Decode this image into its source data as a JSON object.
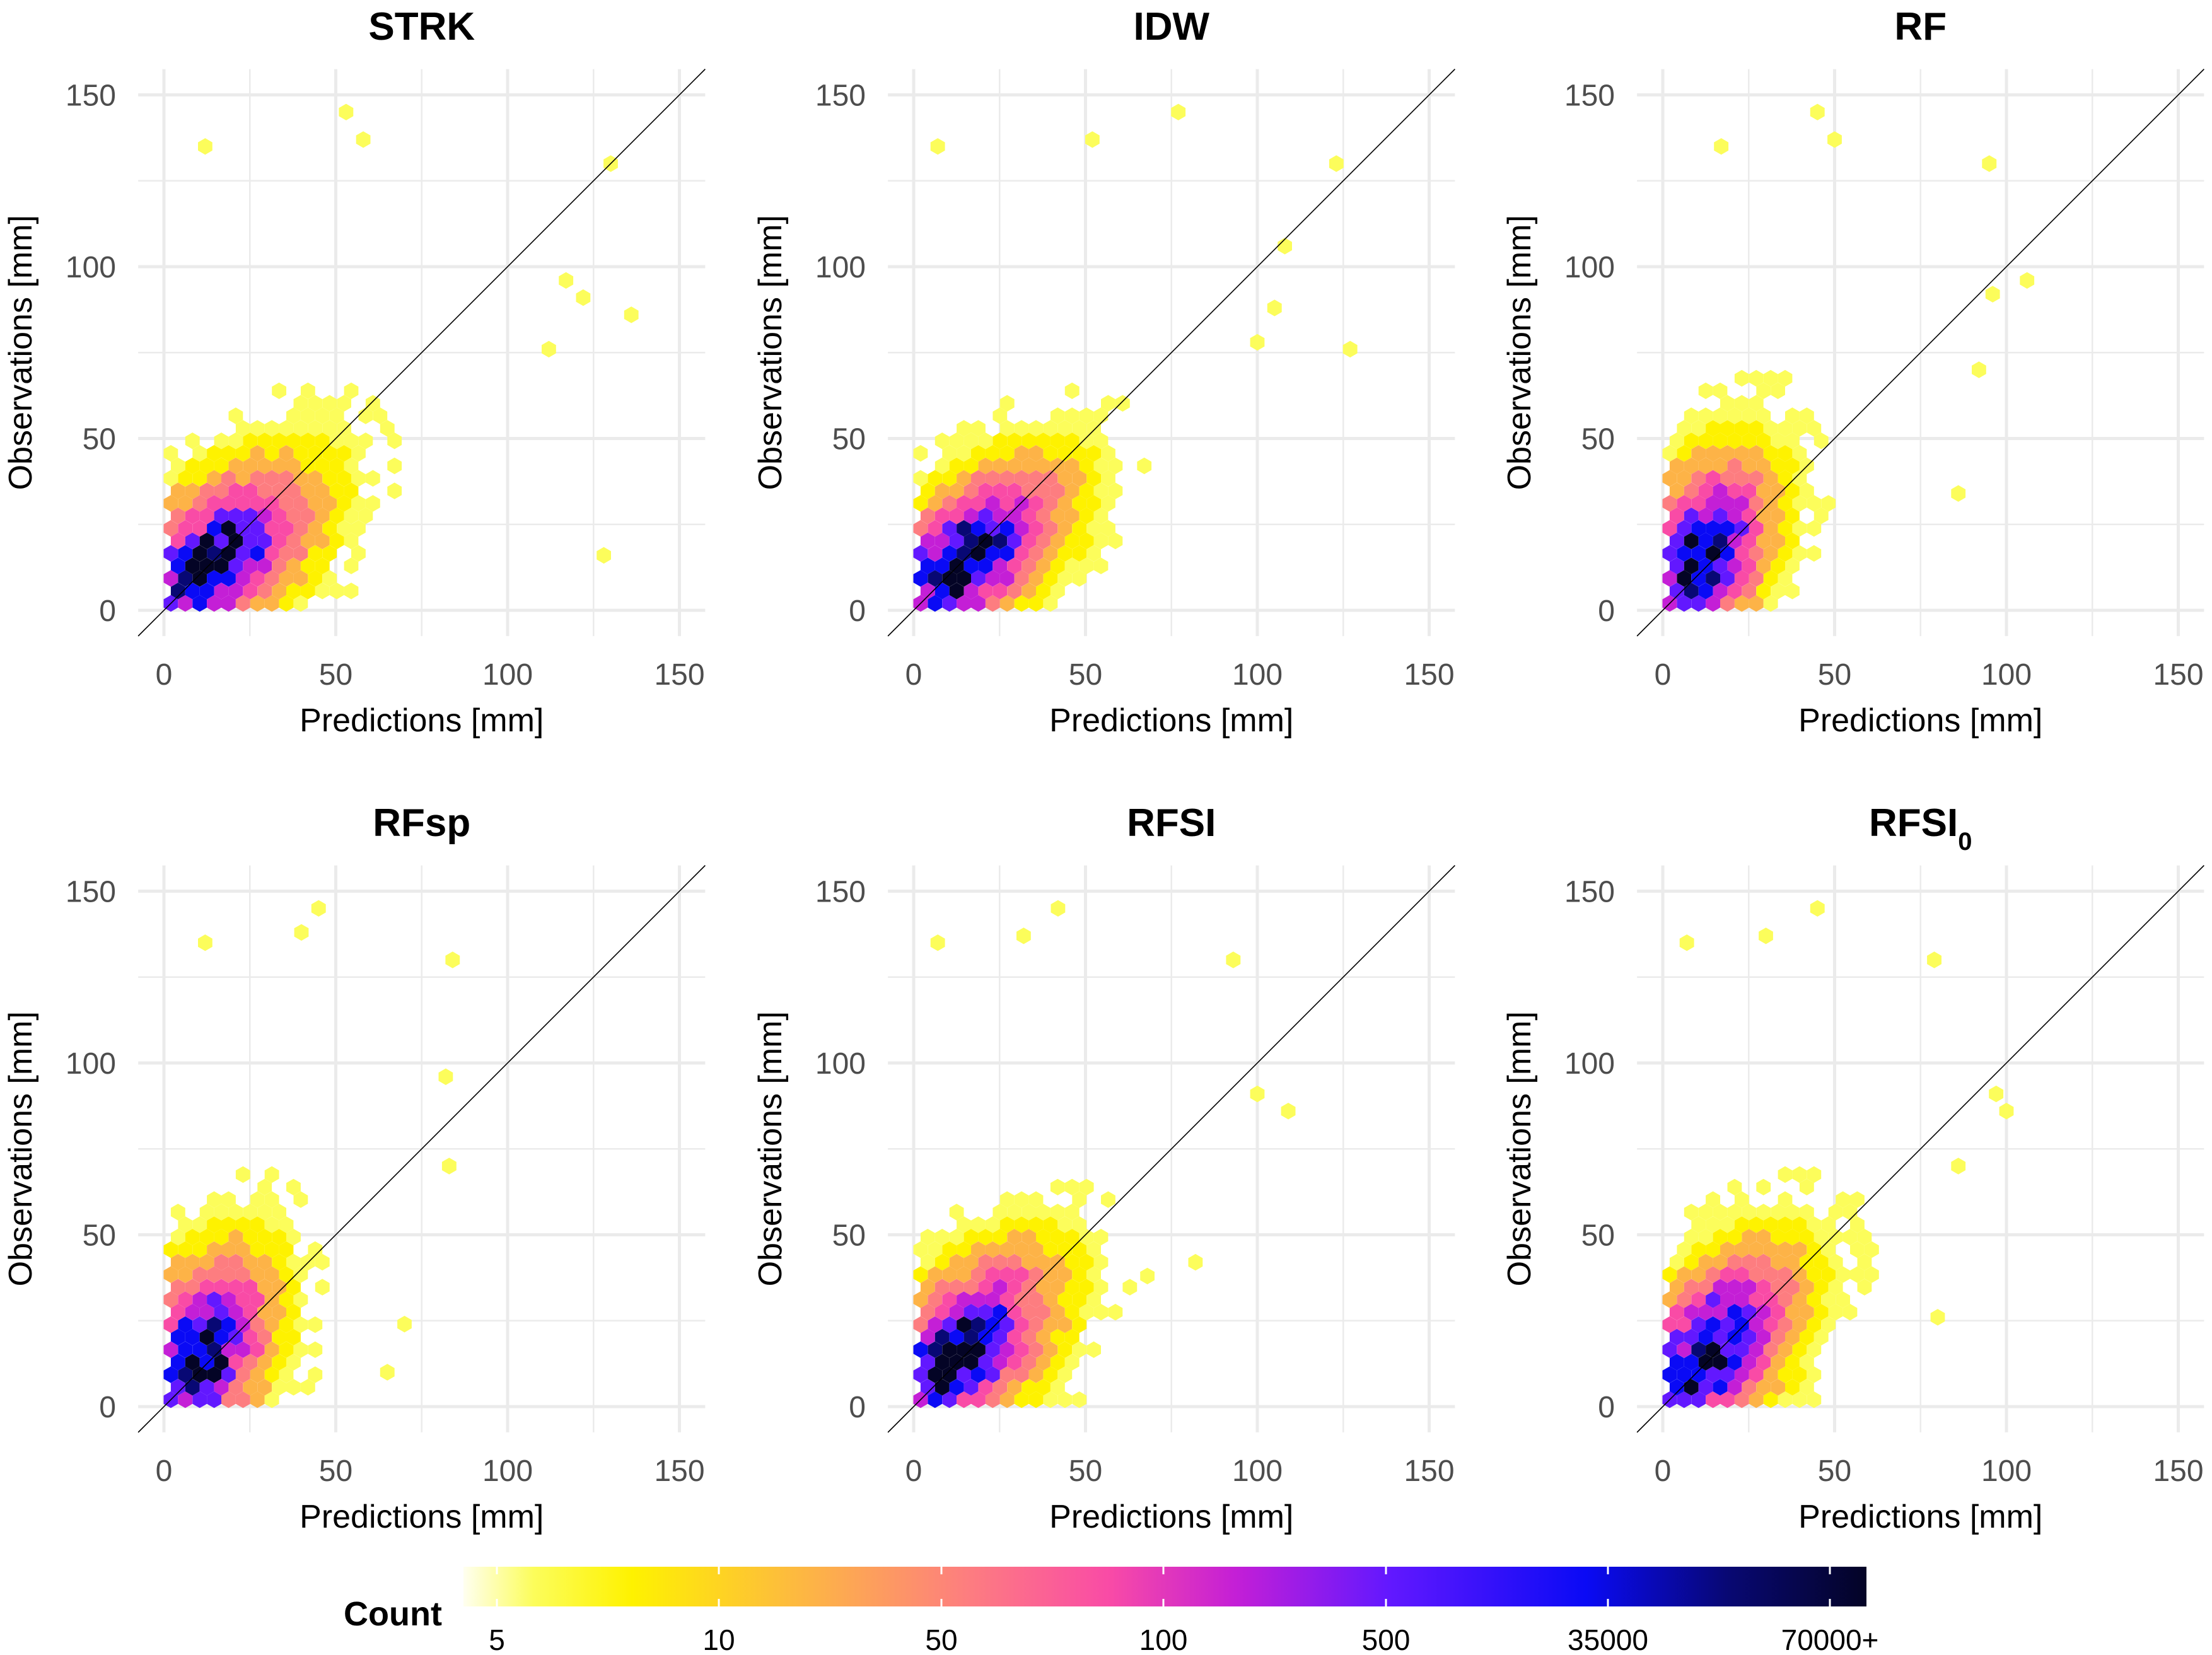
{
  "figure": {
    "colors": {
      "grid": "#ebebeb",
      "background": "#ffffff",
      "line": "#000000"
    }
  },
  "chart_data": [
    {
      "type": "hexbin",
      "title": "STRK",
      "xlabel": "Predictions [mm]",
      "ylabel": "Observations [mm]",
      "xlim": [
        0,
        150
      ],
      "ylim": [
        0,
        150
      ],
      "xticks": [
        "0",
        "50",
        "100",
        "150"
      ],
      "yticks": [
        "0",
        "50",
        "100",
        "150"
      ],
      "reference_line": "y = x",
      "extremes": [
        [
          12,
          135
        ],
        [
          53,
          145
        ],
        [
          58,
          137
        ],
        [
          130,
          130
        ],
        [
          128,
          16
        ],
        [
          136,
          86
        ],
        [
          112,
          76
        ],
        [
          117,
          96
        ],
        [
          122,
          91
        ]
      ],
      "density_profile": {
        "core": [
          14,
          14
        ],
        "spread_x": 16,
        "spread_y": 15,
        "corr": 0.55
      }
    },
    {
      "type": "hexbin",
      "title": "IDW",
      "xlabel": "Predictions [mm]",
      "ylabel": "Observations [mm]",
      "xlim": [
        0,
        150
      ],
      "ylim": [
        0,
        150
      ],
      "xticks": [
        "0",
        "50",
        "100",
        "150"
      ],
      "yticks": [
        "0",
        "50",
        "100",
        "150"
      ],
      "reference_line": "y = x",
      "extremes": [
        [
          7,
          135
        ],
        [
          77,
          145
        ],
        [
          52,
          137
        ],
        [
          123,
          130
        ],
        [
          127,
          76
        ],
        [
          108,
          106
        ],
        [
          100,
          78
        ],
        [
          105,
          88
        ]
      ],
      "density_profile": {
        "core": [
          14,
          14
        ],
        "spread_x": 16,
        "spread_y": 15,
        "corr": 0.6
      }
    },
    {
      "type": "hexbin",
      "title": "RF",
      "xlabel": "Predictions [mm]",
      "ylabel": "Observations [mm]",
      "xlim": [
        0,
        150
      ],
      "ylim": [
        0,
        150
      ],
      "xticks": [
        "0",
        "50",
        "100",
        "150"
      ],
      "yticks": [
        "0",
        "50",
        "100",
        "150"
      ],
      "reference_line": "y = x",
      "extremes": [
        [
          17,
          135
        ],
        [
          45,
          145
        ],
        [
          50,
          137
        ],
        [
          95,
          130
        ],
        [
          106,
          96
        ],
        [
          92,
          70
        ],
        [
          86,
          34
        ],
        [
          96,
          92
        ]
      ],
      "density_profile": {
        "core": [
          11,
          15
        ],
        "spread_x": 11,
        "spread_y": 16,
        "corr": 0.4
      }
    },
    {
      "type": "hexbin",
      "title": "RFsp",
      "xlabel": "Predictions [mm]",
      "ylabel": "Observations [mm]",
      "xlim": [
        0,
        150
      ],
      "ylim": [
        0,
        150
      ],
      "xticks": [
        "0",
        "50",
        "100",
        "150"
      ],
      "yticks": [
        "0",
        "50",
        "100",
        "150"
      ],
      "reference_line": "y = x",
      "extremes": [
        [
          12,
          135
        ],
        [
          45,
          145
        ],
        [
          40,
          138
        ],
        [
          84,
          130
        ],
        [
          83,
          70
        ],
        [
          82,
          96
        ],
        [
          70,
          24
        ],
        [
          65,
          10
        ]
      ],
      "density_profile": {
        "core": [
          11,
          15
        ],
        "spread_x": 11,
        "spread_y": 16,
        "corr": 0.4
      }
    },
    {
      "type": "hexbin",
      "title": "RFSI",
      "xlabel": "Predictions [mm]",
      "ylabel": "Observations [mm]",
      "xlim": [
        0,
        150
      ],
      "ylim": [
        0,
        150
      ],
      "xticks": [
        "0",
        "50",
        "100",
        "150"
      ],
      "yticks": [
        "0",
        "50",
        "100",
        "150"
      ],
      "reference_line": "y = x",
      "extremes": [
        [
          7,
          135
        ],
        [
          42,
          145
        ],
        [
          32,
          137
        ],
        [
          93,
          130
        ],
        [
          100,
          91
        ],
        [
          109,
          86
        ],
        [
          82,
          42
        ],
        [
          68,
          38
        ]
      ],
      "density_profile": {
        "core": [
          13,
          15
        ],
        "spread_x": 15,
        "spread_y": 16,
        "corr": 0.55
      }
    },
    {
      "type": "hexbin",
      "title": "RFSI",
      "title_subscript": "0",
      "xlabel": "Predictions [mm]",
      "ylabel": "Observations [mm]",
      "xlim": [
        0,
        150
      ],
      "ylim": [
        0,
        150
      ],
      "xticks": [
        "0",
        "50",
        "100",
        "150"
      ],
      "yticks": [
        "0",
        "50",
        "100",
        "150"
      ],
      "reference_line": "y = x",
      "extremes": [
        [
          7,
          135
        ],
        [
          45,
          145
        ],
        [
          30,
          137
        ],
        [
          79,
          130
        ],
        [
          100,
          86
        ],
        [
          97,
          91
        ],
        [
          86,
          70
        ],
        [
          80,
          26
        ]
      ],
      "density_profile": {
        "core": [
          13,
          15
        ],
        "spread_x": 14,
        "spread_y": 16,
        "corr": 0.55
      }
    }
  ],
  "legend": {
    "title": "Count",
    "labels": [
      "5",
      "10",
      "50",
      "100",
      "500",
      "35000",
      "70000+"
    ],
    "colors": [
      "#fcfd5b",
      "#fef200",
      "#fdb347",
      "#fd7d80",
      "#f94ba6",
      "#c41fd6",
      "#6218ff",
      "#0a0af5",
      "#080874",
      "#040426"
    ]
  }
}
